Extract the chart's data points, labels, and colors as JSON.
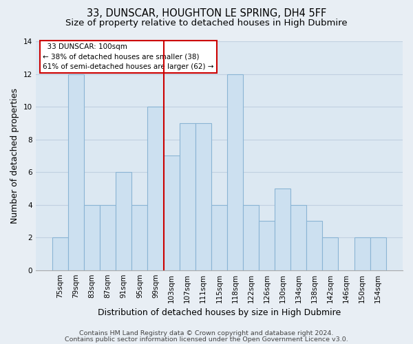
{
  "title": "33, DUNSCAR, HOUGHTON LE SPRING, DH4 5FF",
  "subtitle": "Size of property relative to detached houses in High Dubmire",
  "xlabel": "Distribution of detached houses by size in High Dubmire",
  "ylabel": "Number of detached properties",
  "bar_labels": [
    "75sqm",
    "79sqm",
    "83sqm",
    "87sqm",
    "91sqm",
    "95sqm",
    "99sqm",
    "103sqm",
    "107sqm",
    "111sqm",
    "115sqm",
    "118sqm",
    "122sqm",
    "126sqm",
    "130sqm",
    "134sqm",
    "138sqm",
    "142sqm",
    "146sqm",
    "150sqm",
    "154sqm"
  ],
  "bar_values": [
    2,
    12,
    4,
    4,
    6,
    4,
    10,
    7,
    9,
    9,
    4,
    12,
    4,
    3,
    5,
    4,
    3,
    2,
    0,
    2,
    2
  ],
  "bar_color": "#cce0f0",
  "bar_edge_color": "#8ab4d4",
  "vline_x_index": 6.5,
  "vline_color": "#cc0000",
  "ylim": [
    0,
    14
  ],
  "yticks": [
    0,
    2,
    4,
    6,
    8,
    10,
    12,
    14
  ],
  "annotation_title": "33 DUNSCAR: 100sqm",
  "annotation_line1": "← 38% of detached houses are smaller (38)",
  "annotation_line2": "61% of semi-detached houses are larger (62) →",
  "annotation_box_facecolor": "#ffffff",
  "annotation_box_edgecolor": "#cc0000",
  "footer_line1": "Contains HM Land Registry data © Crown copyright and database right 2024.",
  "footer_line2": "Contains public sector information licensed under the Open Government Licence v3.0.",
  "bg_color": "#e8eef4",
  "plot_bg_color": "#dce8f2",
  "grid_color": "#c0d0e0",
  "title_fontsize": 10.5,
  "subtitle_fontsize": 9.5,
  "axis_label_fontsize": 9,
  "tick_fontsize": 7.5,
  "footer_fontsize": 6.8
}
